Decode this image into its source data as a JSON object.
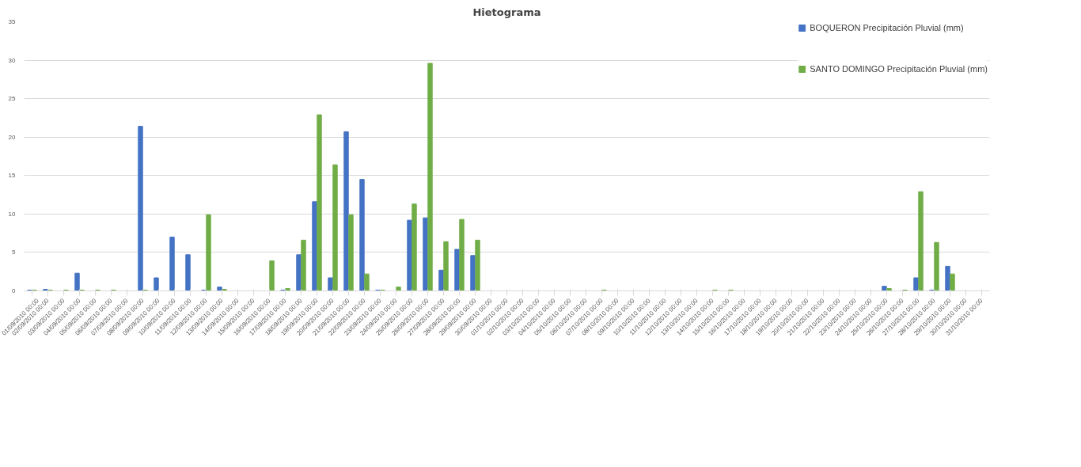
{
  "chart_data": {
    "type": "bar",
    "title": "Hietograma",
    "categories": [
      "01/09/2010 00:00",
      "02/09/2010 00:00",
      "03/09/2010 00:00",
      "04/09/2010 00:00",
      "05/09/2010 00:00",
      "06/09/2010 00:00",
      "07/09/2010 00:00",
      "08/09/2010 00:00",
      "09/09/2010 00:00",
      "10/09/2010 00:00",
      "11/09/2010 00:00",
      "12/09/2010 00:00",
      "13/09/2010 00:00",
      "14/09/2010 00:00",
      "15/09/2010 00:00",
      "16/09/2010 00:00",
      "17/09/2010 00:00",
      "18/09/2010 00:00",
      "19/09/2010 00:00",
      "20/09/2010 00:00",
      "21/09/2010 00:00",
      "22/09/2010 00:00",
      "23/09/2010 00:00",
      "24/09/2010 00:00",
      "25/09/2010 00:00",
      "26/09/2010 00:00",
      "27/09/2010 00:00",
      "28/09/2010 00:00",
      "29/09/2010 00:00",
      "30/09/2010 00:00",
      "01/10/2010 00:00",
      "02/10/2010 00:00",
      "03/10/2010 00:00",
      "04/10/2010 00:00",
      "05/10/2010 00:00",
      "06/10/2010 00:00",
      "07/10/2010 00:00",
      "08/10/2010 00:00",
      "09/10/2010 00:00",
      "10/10/2010 00:00",
      "11/10/2010 00:00",
      "12/10/2010 00:00",
      "13/10/2010 00:00",
      "14/10/2010 00:00",
      "15/10/2010 00:00",
      "16/10/2010 00:00",
      "17/10/2010 00:00",
      "18/10/2010 00:00",
      "19/10/2010 00:00",
      "20/10/2010 00:00",
      "21/10/2010 00:00",
      "22/10/2010 00:00",
      "23/10/2010 00:00",
      "24/10/2010 00:00",
      "25/10/2010 00:00",
      "26/10/2010 00:00",
      "27/10/2010 00:00",
      "28/10/2010 00:00",
      "29/10/2010 00:00",
      "30/10/2010 00:00",
      "31/10/2010 00:00"
    ],
    "series": [
      {
        "name": "BOQUERON Precipitación Pluvial (mm)",
        "color": "#4472c4",
        "values": [
          0.1,
          0.2,
          0,
          2.3,
          0,
          0,
          0,
          21.4,
          1.7,
          7.0,
          4.7,
          0.1,
          0.5,
          0,
          0,
          0,
          0.1,
          4.7,
          11.6,
          1.7,
          20.7,
          14.5,
          0.1,
          0,
          9.2,
          9.5,
          2.7,
          5.4,
          4.6,
          0,
          0,
          0,
          0,
          0,
          0,
          0,
          0,
          0,
          0,
          0,
          0,
          0,
          0,
          0,
          0,
          0,
          0,
          0,
          0,
          0,
          0,
          0,
          0,
          0,
          0.6,
          0,
          1.7,
          0.1,
          3.2,
          0,
          0
        ]
      },
      {
        "name": "SANTO DOMINGO Precipitación Pluvial (mm)",
        "color": "#70ad47",
        "values": [
          0.1,
          0.1,
          0.1,
          0.1,
          0.1,
          0.1,
          0,
          0.1,
          0,
          0,
          0,
          9.9,
          0.2,
          0,
          0,
          3.9,
          0.3,
          6.6,
          22.9,
          16.4,
          9.9,
          2.2,
          0.1,
          0.5,
          11.3,
          29.6,
          6.4,
          9.3,
          6.6,
          0,
          0,
          0,
          0,
          0,
          0,
          0,
          0.1,
          0,
          0,
          0,
          0,
          0,
          0,
          0.1,
          0.1,
          0,
          0,
          0,
          0,
          0,
          0,
          0,
          0,
          0,
          0.3,
          0.1,
          12.9,
          6.3,
          2.2,
          0,
          0
        ]
      }
    ],
    "ylim": [
      0,
      35
    ],
    "yticks": [
      0,
      5,
      10,
      15,
      20,
      25,
      30,
      35
    ],
    "grid": "y",
    "legend": "top right"
  }
}
